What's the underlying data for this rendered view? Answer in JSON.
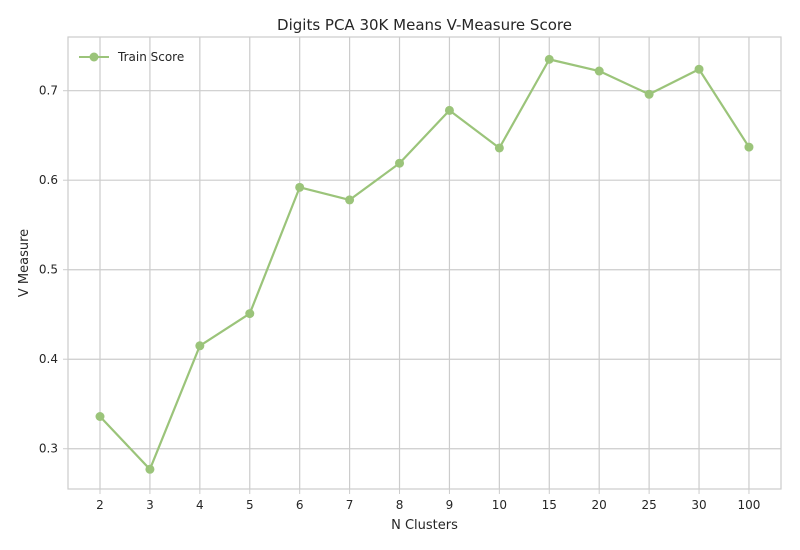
{
  "chart_data": {
    "type": "line",
    "title": "Digits PCA 30K Means V-Measure Score",
    "xlabel": "N Clusters",
    "ylabel": "V Measure",
    "categories": [
      "2",
      "3",
      "4",
      "5",
      "6",
      "7",
      "8",
      "9",
      "10",
      "15",
      "20",
      "25",
      "30",
      "100"
    ],
    "series": [
      {
        "name": "Train Score",
        "color": "#9bc47a",
        "values": [
          0.336,
          0.277,
          0.415,
          0.451,
          0.592,
          0.578,
          0.619,
          0.678,
          0.636,
          0.735,
          0.722,
          0.696,
          0.724,
          0.637
        ]
      }
    ],
    "yticks": [
      "0.3",
      "0.4",
      "0.5",
      "0.6",
      "0.7"
    ],
    "ylim": [
      0.255,
      0.76
    ],
    "grid": true,
    "legend_position": "top-left"
  }
}
